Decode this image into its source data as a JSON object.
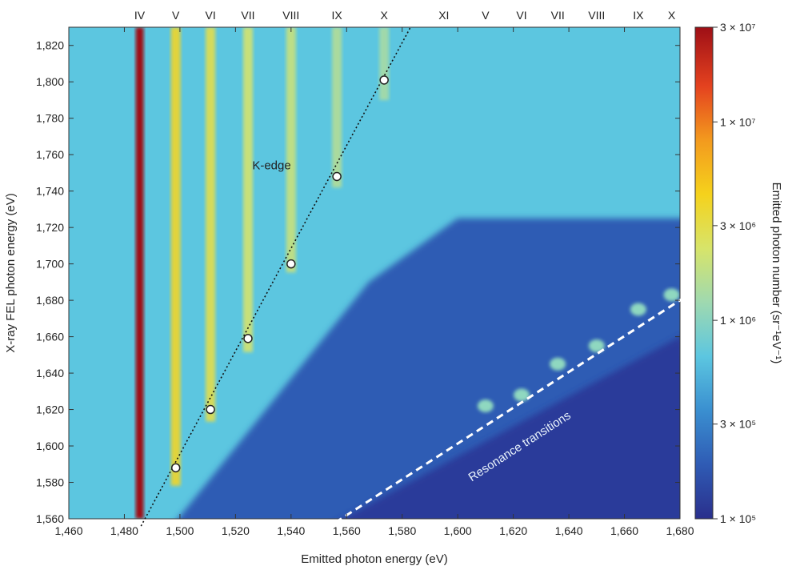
{
  "chart_data": {
    "type": "heatmap",
    "xlabel": "Emitted photon energy (eV)",
    "ylabel": "X-ray FEL photon energy (eV)",
    "xlim": [
      1460,
      1680
    ],
    "ylim": [
      1560,
      1830
    ],
    "x_ticks": [
      "1,460",
      "1,480",
      "1,500",
      "1,520",
      "1,540",
      "1,560",
      "1,580",
      "1,600",
      "1,620",
      "1,640",
      "1,660",
      "1,680"
    ],
    "y_ticks": [
      "1,560",
      "1,580",
      "1,600",
      "1,620",
      "1,640",
      "1,660",
      "1,680",
      "1,700",
      "1,720",
      "1,740",
      "1,760",
      "1,780",
      "1,800",
      "1,820"
    ],
    "colorbar": {
      "label": "Emitted photon number (sr⁻¹eV⁻¹)",
      "scale": "log",
      "range": [
        100000,
        30000000
      ],
      "ticks": [
        {
          "value": 100000,
          "label": "1 × 10⁵"
        },
        {
          "value": 300000,
          "label": "3 × 10⁵"
        },
        {
          "value": 1000000,
          "label": "1 × 10⁶"
        },
        {
          "value": 3000000,
          "label": "3 × 10⁶"
        },
        {
          "value": 10000000,
          "label": "1 × 10⁷"
        },
        {
          "value": 30000000,
          "label": "3 × 10⁷"
        }
      ],
      "colors": [
        "#2a2f8c",
        "#2f5bb4",
        "#3a8fd0",
        "#5cc6e0",
        "#9fd9b0",
        "#d7e46a",
        "#f5d21c",
        "#f39a1e",
        "#e4421f",
        "#9e0f16"
      ]
    },
    "top_labels": [
      {
        "label": "IV",
        "x": 1485.5
      },
      {
        "label": "V",
        "x": 1498.5
      },
      {
        "label": "VI",
        "x": 1511
      },
      {
        "label": "VII",
        "x": 1524.5
      },
      {
        "label": "VIII",
        "x": 1540
      },
      {
        "label": "IX",
        "x": 1556.5
      },
      {
        "label": "X",
        "x": 1573.5
      },
      {
        "label": "XI",
        "x": 1595
      },
      {
        "label": "V",
        "x": 1610
      },
      {
        "label": "VI",
        "x": 1623
      },
      {
        "label": "VII",
        "x": 1636
      },
      {
        "label": "VIII",
        "x": 1650
      },
      {
        "label": "IX",
        "x": 1665
      },
      {
        "label": "X",
        "x": 1677
      }
    ],
    "k_edge_points": [
      {
        "x": 1498.5,
        "y": 1588
      },
      {
        "x": 1511,
        "y": 1620
      },
      {
        "x": 1524.5,
        "y": 1659
      },
      {
        "x": 1540,
        "y": 1700
      },
      {
        "x": 1556.5,
        "y": 1748
      },
      {
        "x": 1573.5,
        "y": 1801
      }
    ],
    "k_edge_line": {
      "x_start": 1486,
      "y_start": 1556,
      "x_end": 1583,
      "y_end": 1830
    },
    "resonance_line": {
      "x_start": 1556,
      "y_start": 1558,
      "x_end": 1681,
      "y_end": 1681
    },
    "annotations": [
      {
        "text": "K-edge",
        "x": 1533,
        "y": 1752
      },
      {
        "text": "Resonance transitions",
        "x": 1623,
        "y": 1598
      }
    ],
    "emission_lines": [
      {
        "label": "IV",
        "x": 1485.5,
        "value": 30000000
      },
      {
        "label": "V",
        "x": 1498.5,
        "value": 4000000
      },
      {
        "label": "VI",
        "x": 1511,
        "value": 3000000
      },
      {
        "label": "VII",
        "x": 1524.5,
        "value": 2300000
      },
      {
        "label": "VIII",
        "x": 1540,
        "value": 2000000
      },
      {
        "label": "IX",
        "x": 1556.5,
        "value": 1600000
      },
      {
        "label": "X",
        "x": 1573.5,
        "value": 1400000
      },
      {
        "label": "XI",
        "x": 1595,
        "value": 1100000
      }
    ],
    "resonance_spots": [
      {
        "x": 1610,
        "y": 1622
      },
      {
        "x": 1623,
        "y": 1628
      },
      {
        "x": 1636,
        "y": 1645
      },
      {
        "x": 1650,
        "y": 1655
      },
      {
        "x": 1665,
        "y": 1675
      },
      {
        "x": 1677,
        "y": 1683
      }
    ]
  }
}
